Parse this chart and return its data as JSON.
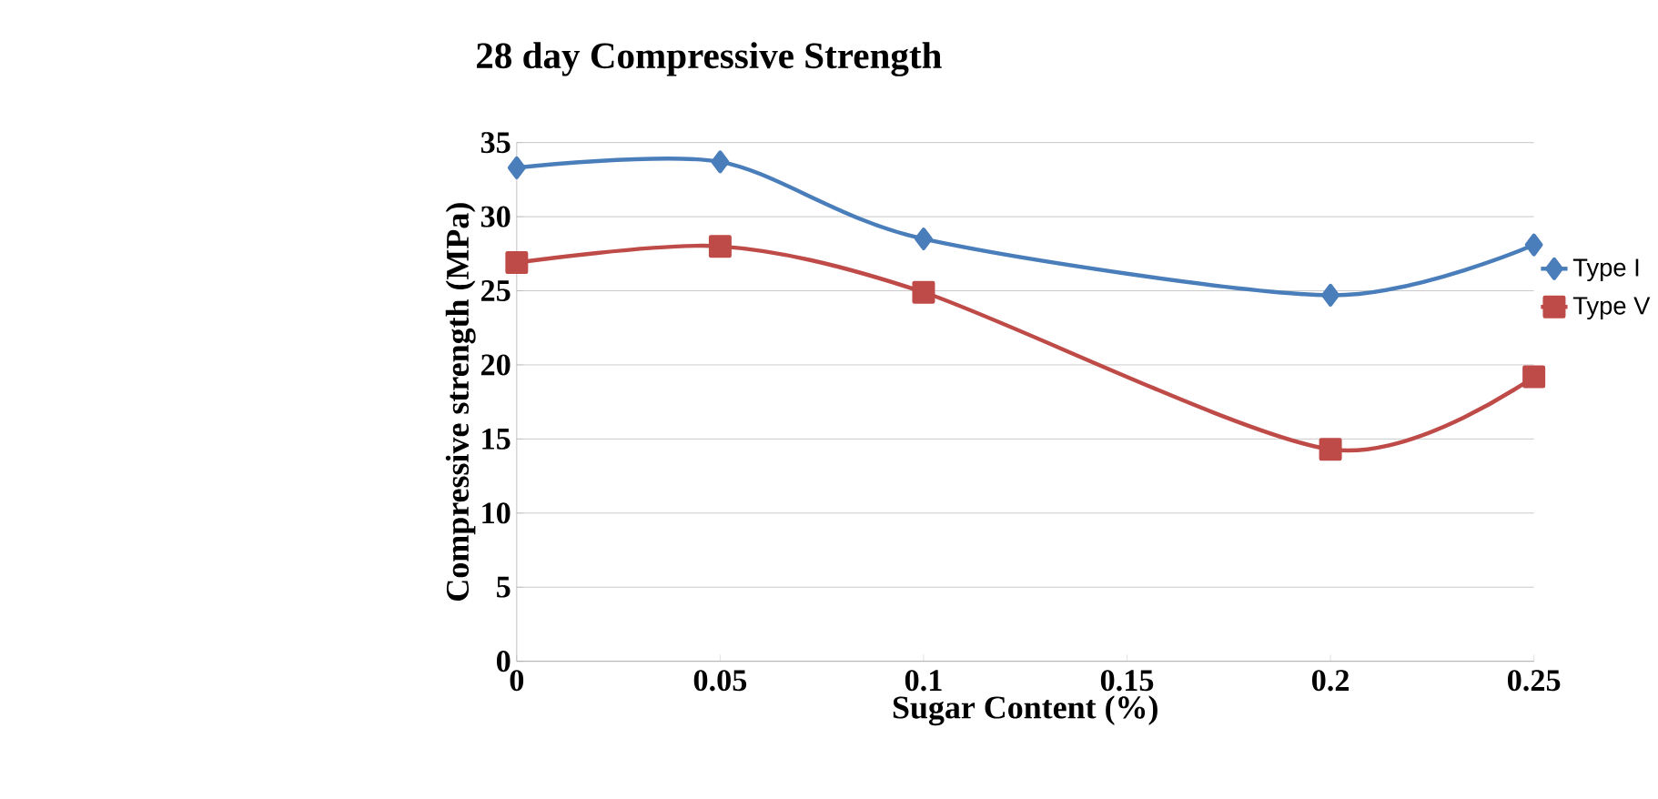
{
  "chart_data": {
    "type": "line",
    "title": "28 day Compressive Strength",
    "xlabel": "Sugar Content (%)",
    "ylabel": "Compressive strength (MPa)",
    "x": [
      0,
      0.05,
      0.1,
      0.2,
      0.25
    ],
    "series": [
      {
        "name": "Type I",
        "color": "#4a7ebb",
        "marker": "diamond",
        "values": [
          33.3,
          33.7,
          28.5,
          24.7,
          28.1
        ]
      },
      {
        "name": "Type V",
        "color": "#be4b48",
        "marker": "square",
        "values": [
          26.9,
          28.0,
          24.9,
          14.3,
          19.2
        ]
      }
    ],
    "xlim": [
      0,
      0.25
    ],
    "xticks": [
      0,
      0.05,
      0.1,
      0.15,
      0.2,
      0.25
    ],
    "ylim": [
      0,
      35
    ],
    "yticks": [
      0,
      5,
      10,
      15,
      20,
      25,
      30,
      35
    ],
    "grid": "y",
    "legend": "right",
    "line_style": "solid"
  }
}
